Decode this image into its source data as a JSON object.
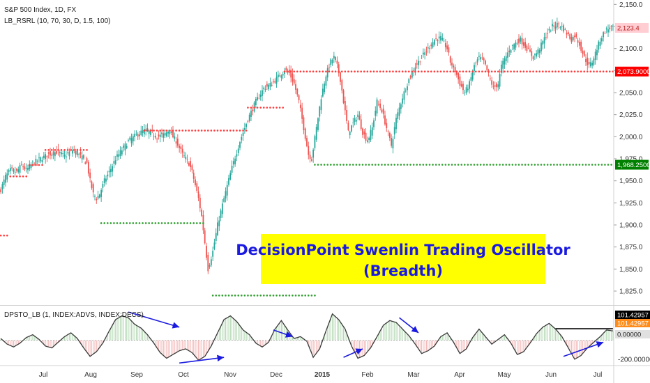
{
  "main": {
    "title": "S&P 500 Index, 1D, FX",
    "indicator": "LB_RSRL (10, 70, 30, D, 1.5, 100)",
    "y_ticks": [
      "2,150.0",
      "2,125.0",
      "2,100.0",
      "2,075.0",
      "2,050.0",
      "2,025.0",
      "2,000.0",
      "1,975.0",
      "1,950.0",
      "1,925.0",
      "1,900.0",
      "1,875.0",
      "1,850.0",
      "1,825.0"
    ],
    "price_tags": {
      "last": "2,123.4",
      "resistance": "2,073.9000",
      "support": "1,968.2500"
    }
  },
  "annotation": {
    "line1": "DecisionPoint Swenlin Trading Oscillator",
    "line2": "(Breadth)"
  },
  "oscillator": {
    "title": "DPSTO_LB (1, INDEX:ADVS, INDEX:DECS)",
    "tags": [
      "101.42957",
      "101.42957",
      "0.00000"
    ],
    "y_tick": "-200.00000"
  },
  "x_labels": [
    "Jul",
    "Aug",
    "Sep",
    "Oct",
    "Nov",
    "Dec",
    "2015",
    "Feb",
    "Mar",
    "Apr",
    "May",
    "Jun",
    "Jul"
  ],
  "colors": {
    "up": "#26a69a",
    "down": "#ef5350",
    "resistance": "#ff3b3b",
    "support": "#2e9e2e",
    "annotation_bg": "#ffff00",
    "annotation_text": "#1a1ae0",
    "arrow": "#1a1ae0",
    "tag_last": "#ffcdd2",
    "tag_resistance": "#ff0000",
    "tag_support": "#008000",
    "tag_osc1": "#000000",
    "tag_osc2": "#ff8c1a",
    "tag_osc3": "#e0e0e0"
  },
  "chart_data": [
    {
      "type": "candlestick",
      "ylim": [
        1810,
        2155
      ],
      "y_ticks": [
        2150,
        2125,
        2100,
        2075,
        2050,
        2025,
        2000,
        1975,
        1950,
        1925,
        1900,
        1875,
        1850,
        1825
      ],
      "close_path": [
        [
          0,
          1940
        ],
        [
          3,
          1955
        ],
        [
          6,
          1962
        ],
        [
          10,
          1960
        ],
        [
          13,
          1968
        ],
        [
          16,
          1962
        ],
        [
          20,
          1970
        ],
        [
          25,
          1975
        ],
        [
          30,
          1980
        ],
        [
          35,
          1983
        ],
        [
          40,
          1978
        ],
        [
          45,
          1985
        ],
        [
          50,
          1978
        ],
        [
          54,
          1970
        ],
        [
          56,
          1950
        ],
        [
          58,
          1935
        ],
        [
          60,
          1930
        ],
        [
          62,
          1935
        ],
        [
          65,
          1950
        ],
        [
          68,
          1960
        ],
        [
          72,
          1975
        ],
        [
          76,
          1985
        ],
        [
          80,
          1995
        ],
        [
          85,
          2002
        ],
        [
          90,
          2007
        ],
        [
          94,
          2005
        ],
        [
          98,
          2000
        ],
        [
          102,
          2002
        ],
        [
          106,
          2008
        ],
        [
          108,
          2000
        ],
        [
          110,
          1995
        ],
        [
          114,
          1980
        ],
        [
          118,
          1970
        ],
        [
          120,
          1960
        ],
        [
          122,
          1945
        ],
        [
          124,
          1930
        ],
        [
          126,
          1910
        ],
        [
          128,
          1880
        ],
        [
          130,
          1850
        ],
        [
          133,
          1870
        ],
        [
          136,
          1900
        ],
        [
          140,
          1930
        ],
        [
          145,
          1965
        ],
        [
          150,
          1995
        ],
        [
          155,
          2020
        ],
        [
          160,
          2040
        ],
        [
          165,
          2055
        ],
        [
          170,
          2060
        ],
        [
          175,
          2070
        ],
        [
          178,
          2075
        ],
        [
          181,
          2072
        ],
        [
          184,
          2060
        ],
        [
          187,
          2040
        ],
        [
          189,
          2020
        ],
        [
          191,
          2000
        ],
        [
          193,
          1980
        ],
        [
          195,
          1975
        ],
        [
          198,
          2010
        ],
        [
          201,
          2045
        ],
        [
          204,
          2070
        ],
        [
          207,
          2085
        ],
        [
          209,
          2090
        ],
        [
          211,
          2080
        ],
        [
          213,
          2065
        ],
        [
          215,
          2040
        ],
        [
          218,
          2005
        ],
        [
          221,
          2015
        ],
        [
          224,
          2025
        ],
        [
          227,
          2005
        ],
        [
          230,
          1995
        ],
        [
          233,
          2010
        ],
        [
          236,
          2040
        ],
        [
          239,
          2030
        ],
        [
          242,
          2010
        ],
        [
          245,
          1990
        ],
        [
          248,
          2020
        ],
        [
          252,
          2045
        ],
        [
          256,
          2065
        ],
        [
          260,
          2080
        ],
        [
          264,
          2090
        ],
        [
          268,
          2100
        ],
        [
          272,
          2110
        ],
        [
          276,
          2112
        ],
        [
          280,
          2100
        ],
        [
          282,
          2085
        ],
        [
          285,
          2075
        ],
        [
          288,
          2060
        ],
        [
          291,
          2050
        ],
        [
          294,
          2060
        ],
        [
          297,
          2080
        ],
        [
          300,
          2090
        ],
        [
          303,
          2085
        ],
        [
          306,
          2070
        ],
        [
          309,
          2055
        ],
        [
          312,
          2060
        ],
        [
          314,
          2080
        ],
        [
          318,
          2095
        ],
        [
          322,
          2105
        ],
        [
          326,
          2110
        ],
        [
          330,
          2100
        ],
        [
          334,
          2090
        ],
        [
          338,
          2100
        ],
        [
          342,
          2115
        ],
        [
          346,
          2125
        ],
        [
          350,
          2128
        ],
        [
          354,
          2120
        ],
        [
          358,
          2110
        ],
        [
          360,
          2115
        ],
        [
          363,
          2105
        ],
        [
          366,
          2090
        ],
        [
          369,
          2080
        ],
        [
          371,
          2085
        ],
        [
          373,
          2095
        ],
        [
          376,
          2110
        ],
        [
          379,
          2120
        ],
        [
          382,
          2123
        ]
      ],
      "resistance_levels": [
        {
          "from": 0,
          "to": 4,
          "value": 1888
        },
        {
          "from": 6,
          "to": 16,
          "value": 1955
        },
        {
          "from": 18,
          "to": 27,
          "value": 1968
        },
        {
          "from": 28,
          "to": 55,
          "value": 1985
        },
        {
          "from": 90,
          "to": 155,
          "value": 2007
        },
        {
          "from": 155,
          "to": 177,
          "value": 2033
        },
        {
          "from": 178,
          "to": 384,
          "value": 2073.9
        }
      ],
      "support_levels": [
        {
          "from": 63,
          "to": 127,
          "value": 1902
        },
        {
          "from": 133,
          "to": 197,
          "value": 1820
        },
        {
          "from": 197,
          "to": 384,
          "value": 1968.25
        }
      ],
      "last_value": 2123.4,
      "resistance_value": 2073.9,
      "support_value": 1968.25
    },
    {
      "type": "line",
      "ylim": [
        -260,
        360
      ],
      "zero": 0,
      "reference_tick": -200,
      "resistance_line": 101.42957,
      "last_value": 101.42957,
      "path": [
        [
          0,
          20
        ],
        [
          4,
          -40
        ],
        [
          8,
          -70
        ],
        [
          12,
          -30
        ],
        [
          16,
          30
        ],
        [
          20,
          60
        ],
        [
          24,
          10
        ],
        [
          28,
          -60
        ],
        [
          32,
          -80
        ],
        [
          36,
          -20
        ],
        [
          40,
          40
        ],
        [
          44,
          80
        ],
        [
          48,
          20
        ],
        [
          52,
          -80
        ],
        [
          56,
          -170
        ],
        [
          60,
          -120
        ],
        [
          64,
          -30
        ],
        [
          68,
          100
        ],
        [
          72,
          220
        ],
        [
          76,
          260
        ],
        [
          80,
          240
        ],
        [
          84,
          170
        ],
        [
          88,
          130
        ],
        [
          92,
          60
        ],
        [
          96,
          -30
        ],
        [
          100,
          -130
        ],
        [
          104,
          -190
        ],
        [
          108,
          -150
        ],
        [
          112,
          -110
        ],
        [
          116,
          -90
        ],
        [
          120,
          -130
        ],
        [
          124,
          -210
        ],
        [
          128,
          -170
        ],
        [
          132,
          -60
        ],
        [
          136,
          80
        ],
        [
          140,
          220
        ],
        [
          144,
          260
        ],
        [
          148,
          200
        ],
        [
          152,
          110
        ],
        [
          156,
          60
        ],
        [
          160,
          -30
        ],
        [
          164,
          -70
        ],
        [
          168,
          -20
        ],
        [
          172,
          120
        ],
        [
          176,
          210
        ],
        [
          180,
          110
        ],
        [
          184,
          20
        ],
        [
          188,
          40
        ],
        [
          192,
          -10
        ],
        [
          196,
          -180
        ],
        [
          200,
          -90
        ],
        [
          204,
          100
        ],
        [
          208,
          280
        ],
        [
          212,
          220
        ],
        [
          216,
          120
        ],
        [
          220,
          -60
        ],
        [
          224,
          -190
        ],
        [
          228,
          -160
        ],
        [
          232,
          -80
        ],
        [
          236,
          40
        ],
        [
          240,
          160
        ],
        [
          244,
          210
        ],
        [
          248,
          190
        ],
        [
          252,
          120
        ],
        [
          256,
          50
        ],
        [
          260,
          -40
        ],
        [
          264,
          -140
        ],
        [
          268,
          -110
        ],
        [
          272,
          -60
        ],
        [
          276,
          40
        ],
        [
          280,
          80
        ],
        [
          284,
          -20
        ],
        [
          288,
          -140
        ],
        [
          292,
          -90
        ],
        [
          296,
          30
        ],
        [
          300,
          120
        ],
        [
          304,
          40
        ],
        [
          308,
          -40
        ],
        [
          312,
          10
        ],
        [
          316,
          60
        ],
        [
          320,
          -30
        ],
        [
          324,
          -150
        ],
        [
          328,
          -120
        ],
        [
          332,
          -30
        ],
        [
          336,
          70
        ],
        [
          340,
          140
        ],
        [
          344,
          180
        ],
        [
          348,
          120
        ],
        [
          352,
          40
        ],
        [
          356,
          -80
        ],
        [
          360,
          -200
        ],
        [
          364,
          -160
        ],
        [
          368,
          -80
        ],
        [
          372,
          -20
        ],
        [
          376,
          40
        ],
        [
          380,
          110
        ],
        [
          384,
          100
        ]
      ]
    }
  ]
}
